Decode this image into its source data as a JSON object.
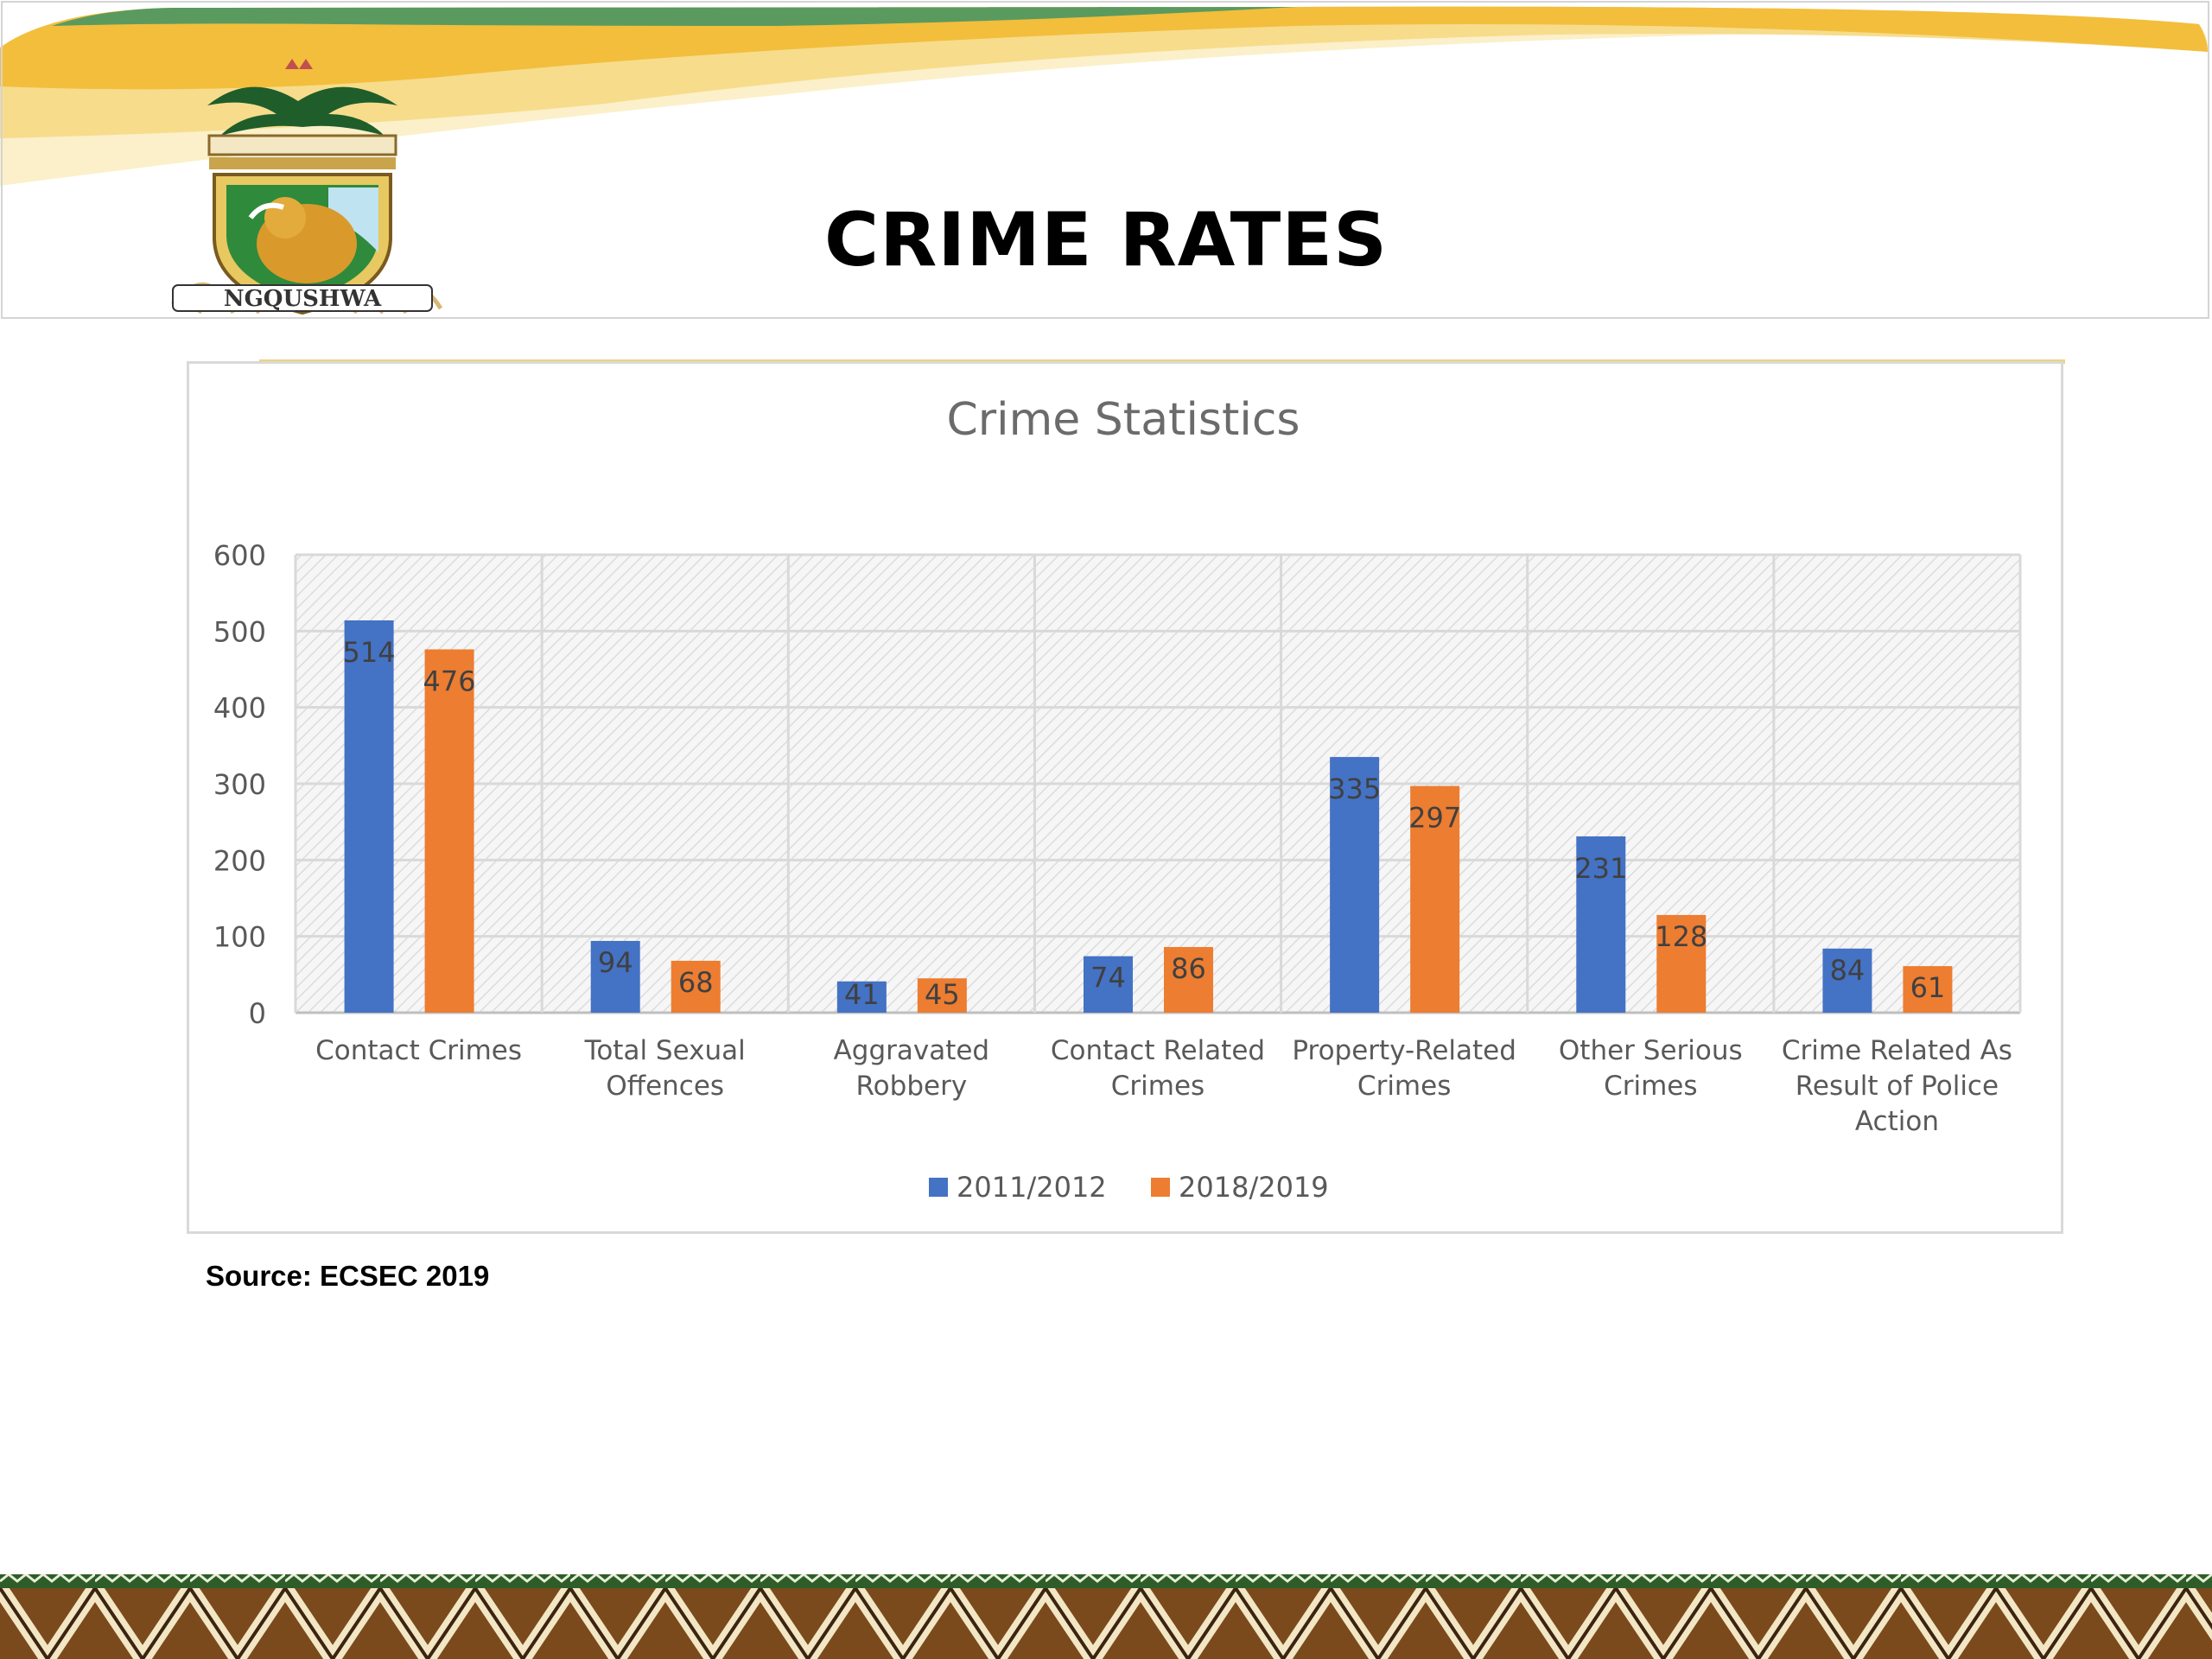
{
  "slide": {
    "title": "CRIME RATES",
    "source": "Source: ECSEC 2019",
    "logo_text": "NGQUSHWA"
  },
  "colors": {
    "series1": "#4472c4",
    "series2": "#ed7d31",
    "header_green": "#5b9a5f",
    "header_gold": "#f2be3c"
  },
  "chart_data": {
    "type": "bar",
    "title": "Crime Statistics",
    "xlabel": "",
    "ylabel": "",
    "ylim": [
      0,
      600
    ],
    "yticks": [
      0,
      100,
      200,
      300,
      400,
      500,
      600
    ],
    "grid": true,
    "legend_position": "bottom",
    "categories": [
      "Contact Crimes",
      "Total Sexual Offences",
      "Aggravated Robbery",
      "Contact Related Crimes",
      "Property-Related Crimes",
      "Other Serious Crimes",
      "Crime Related As Result of Police Action"
    ],
    "category_lines": [
      [
        "Contact Crimes"
      ],
      [
        "Total Sexual",
        "Offences"
      ],
      [
        "Aggravated",
        "Robbery"
      ],
      [
        "Contact Related",
        "Crimes"
      ],
      [
        "Property-Related",
        "Crimes"
      ],
      [
        "Other Serious",
        "Crimes"
      ],
      [
        "Crime Related As",
        "Result of Police",
        "Action"
      ]
    ],
    "series": [
      {
        "name": "2011/2012",
        "color": "#4472c4",
        "values": [
          514,
          94,
          41,
          74,
          335,
          231,
          84
        ]
      },
      {
        "name": "2018/2019",
        "color": "#ed7d31",
        "values": [
          476,
          68,
          45,
          86,
          297,
          128,
          61
        ]
      }
    ]
  }
}
